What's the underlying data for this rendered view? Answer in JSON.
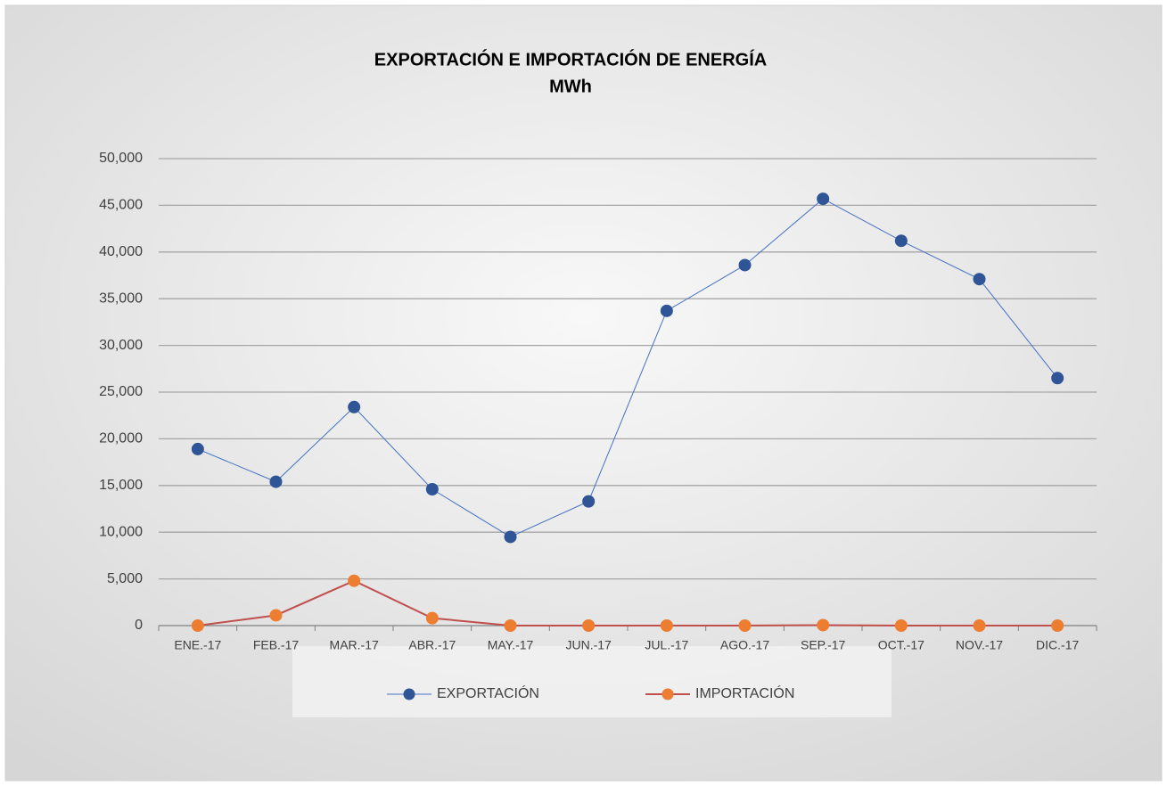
{
  "chart_data": {
    "type": "line",
    "title": "EXPORTACIÓN E IMPORTACIÓN DE ENERGÍA",
    "subtitle": "MWh",
    "categories": [
      "ENE.-17",
      "FEB.-17",
      "MAR.-17",
      "ABR.-17",
      "MAY.-17",
      "JUN.-17",
      "JUL.-17",
      "AGO.-17",
      "SEP.-17",
      "OCT.-17",
      "NOV.-17",
      "DIC.-17"
    ],
    "series": [
      {
        "name": "EXPORTACIÓN",
        "color": "#4472c4",
        "marker_color": "#2f5597",
        "values": [
          18900,
          15400,
          23400,
          14600,
          9500,
          13300,
          33700,
          38600,
          45700,
          41200,
          37100,
          26500
        ]
      },
      {
        "name": "IMPORTACIÓN",
        "color": "#c0504d",
        "marker_color": "#ed7d31",
        "values": [
          0,
          1100,
          4800,
          800,
          0,
          0,
          0,
          0,
          50,
          0,
          0,
          0
        ]
      }
    ],
    "ylim": [
      0,
      50000
    ],
    "yticks": [
      0,
      {
        "value": 5000,
        "label": "5,000"
      },
      {
        "value": 10000,
        "label": "10,000"
      },
      {
        "value": 15000,
        "label": "15,000"
      },
      {
        "value": 20000,
        "label": "20,000"
      },
      {
        "value": 25000,
        "label": "25,000"
      },
      {
        "value": 30000,
        "label": "30,000"
      },
      {
        "value": 35000,
        "label": "35,000"
      },
      {
        "value": 40000,
        "label": "40,000"
      },
      {
        "value": 45000,
        "label": "45,000"
      },
      {
        "value": 50000,
        "label": "50,000"
      }
    ],
    "grid": true,
    "legend": "bottom"
  }
}
